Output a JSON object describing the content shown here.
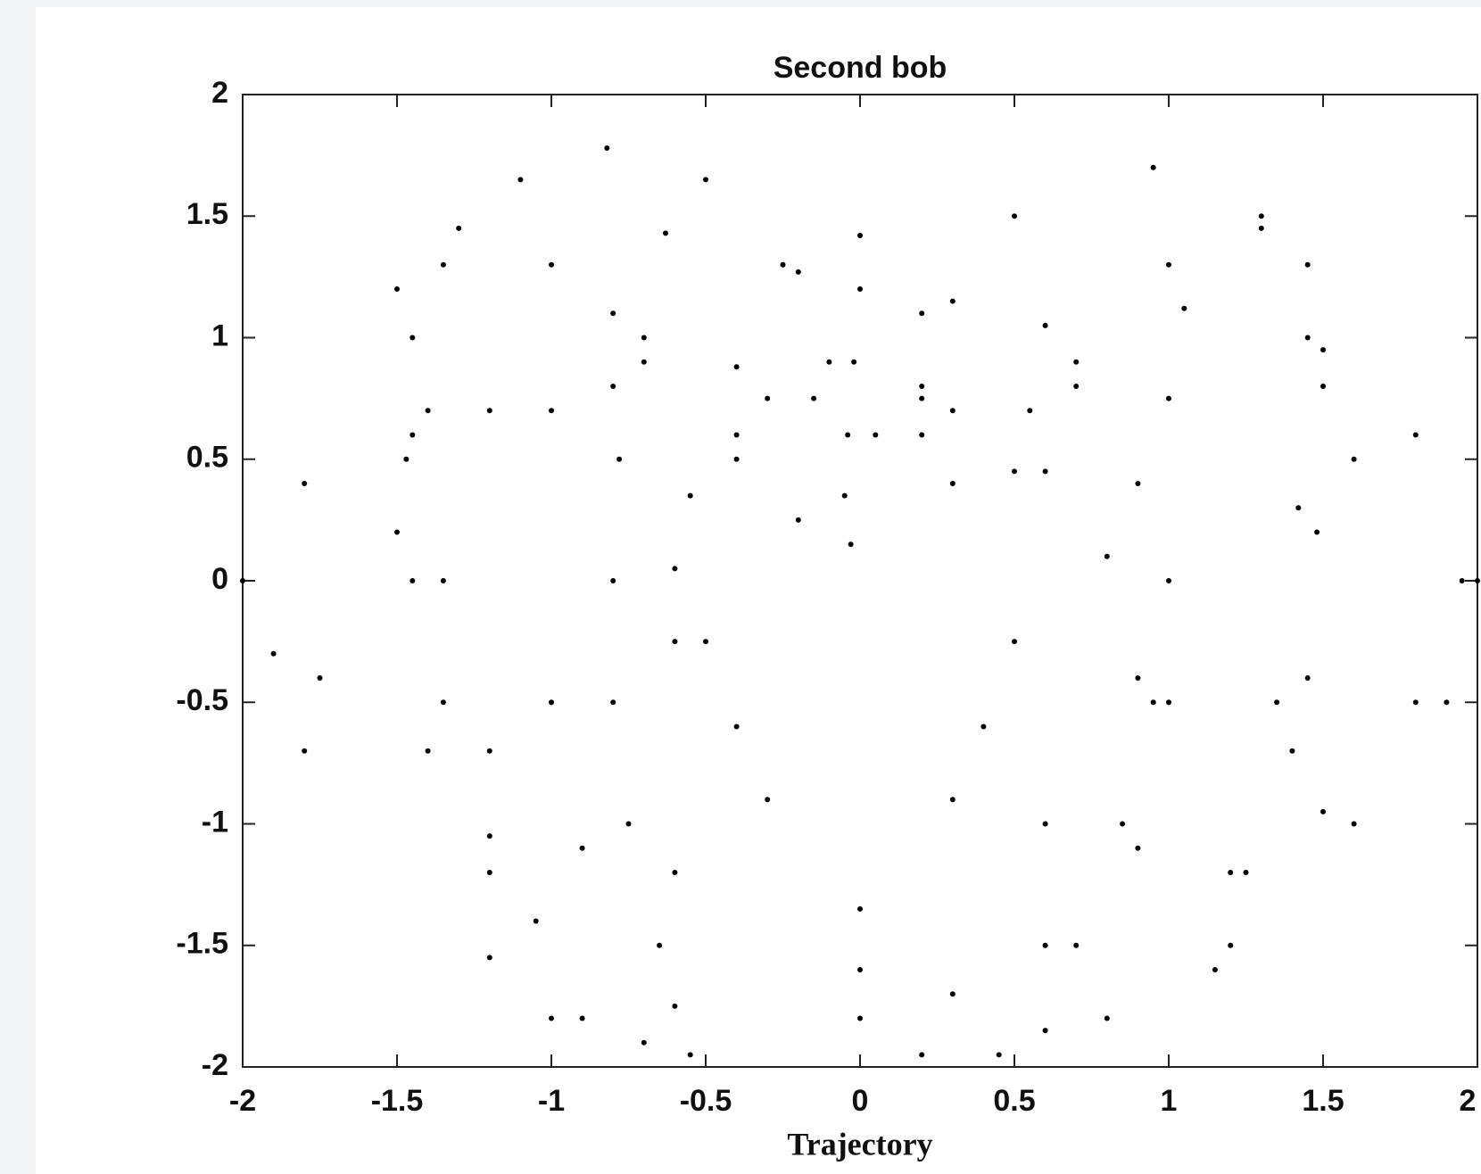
{
  "chart_data": {
    "type": "scatter",
    "title": "Second bob",
    "x_label": "Trajectory",
    "color": "#000000",
    "x": [
      0,
      0,
      -0.02,
      -0.04,
      -0.05,
      -0.03,
      -1,
      -1.2,
      -1.35,
      -1.45,
      -1.47,
      -1.45,
      -1.35,
      -1.1,
      -0.82,
      -0.5,
      -0.25,
      -0.1,
      0.05,
      0.2,
      0.5,
      0.95,
      1.3,
      1.45,
      1.42,
      1.35,
      1.25,
      1.15,
      -1.5,
      -1.45,
      -1.35,
      -1.2,
      -1.05,
      -0.9,
      -0.7,
      -0.55,
      -1.3,
      -1.0,
      -0.7,
      -0.4,
      -0.2,
      0.3,
      0.7,
      1.0,
      1.3,
      1.45,
      1.5,
      1.48,
      1.45,
      -1.8,
      -1.5,
      -1.2,
      -0.8,
      -0.2,
      0.3,
      0.7,
      0.9,
      1.0,
      0.95,
      0.85,
      0.7,
      0.6,
      0.6,
      1.05,
      1.5,
      1.8,
      2.0,
      1.9,
      1.6,
      1.2,
      0.8,
      0.45,
      -2,
      -1.9,
      -1.8,
      -1.4,
      -0.8,
      -0.3,
      0.2,
      0.5,
      -1.75,
      -1.0,
      -0.4,
      0.2,
      0.6,
      0.8,
      0.9,
      0.3,
      1.0,
      1.6,
      1.95,
      1.8,
      1.5,
      -0.6,
      -0.6,
      -0.55,
      -0.4,
      -0.15,
      0.2,
      0.55,
      -0.63,
      -0.7,
      -0.78,
      -0.8,
      -0.8,
      -0.75,
      -0.65,
      -0.5,
      -1.0,
      -1.4,
      0.5,
      1.0,
      1.4,
      -0.4,
      -0.9,
      0.4,
      0.9,
      -0.3,
      0.3,
      -1.2,
      -0.6,
      0,
      0.6,
      1.2,
      0.6,
      0,
      -0.6,
      -1.2,
      0.2,
      0,
      0.3
    ],
    "values": [
      1.42,
      1.2,
      0.9,
      0.6,
      0.35,
      0.15,
      -1.8,
      -1.2,
      -0.5,
      0,
      0.5,
      1.0,
      1.3,
      1.65,
      1.78,
      1.65,
      1.3,
      0.9,
      0.6,
      1.1,
      1.5,
      1.7,
      1.5,
      1.0,
      0.3,
      -0.5,
      -1.2,
      -1.6,
      1.2,
      0.6,
      0,
      -0.7,
      -1.4,
      -1.8,
      -1.9,
      -1.95,
      1.45,
      1.3,
      0.9,
      0.5,
      0.25,
      0.4,
      0.9,
      1.3,
      1.45,
      1.3,
      0.8,
      0.2,
      -0.4,
      -0.7,
      0.2,
      0.7,
      1.1,
      1.27,
      1.15,
      0.8,
      0.4,
      0,
      -0.5,
      -1.0,
      -1.5,
      -1.85,
      1.05,
      1.12,
      0.95,
      0.6,
      0,
      -0.5,
      -1.0,
      -1.5,
      -1.8,
      -1.95,
      0,
      -0.3,
      0.4,
      0.7,
      0.8,
      0.75,
      0.6,
      0.45,
      -0.4,
      0.7,
      0.88,
      0.75,
      0.45,
      0.1,
      -0.4,
      0.7,
      0.75,
      0.5,
      0,
      -0.5,
      -0.95,
      -0.25,
      0.05,
      0.35,
      0.6,
      0.75,
      0.8,
      0.7,
      1.43,
      1.0,
      0.5,
      0,
      -0.5,
      -1.0,
      -1.5,
      -0.25,
      -0.5,
      -0.7,
      -0.25,
      -0.5,
      -0.7,
      -0.6,
      -1.1,
      -0.6,
      -1.1,
      -0.9,
      -0.9,
      -1.05,
      -1.2,
      -1.35,
      -1.5,
      -1.2,
      -1.0,
      -1.6,
      -1.75,
      -1.55,
      -1.95,
      -1.8,
      -1.7
    ],
    "xlim": [
      -2,
      2
    ],
    "ylim": [
      -2,
      2
    ],
    "xticks": [
      -2,
      -1.5,
      -1,
      -0.5,
      0,
      0.5,
      1,
      1.5,
      2
    ],
    "yticks": [
      -2,
      -1.5,
      -1,
      -0.5,
      0,
      0.5,
      1,
      1.5,
      2
    ]
  }
}
